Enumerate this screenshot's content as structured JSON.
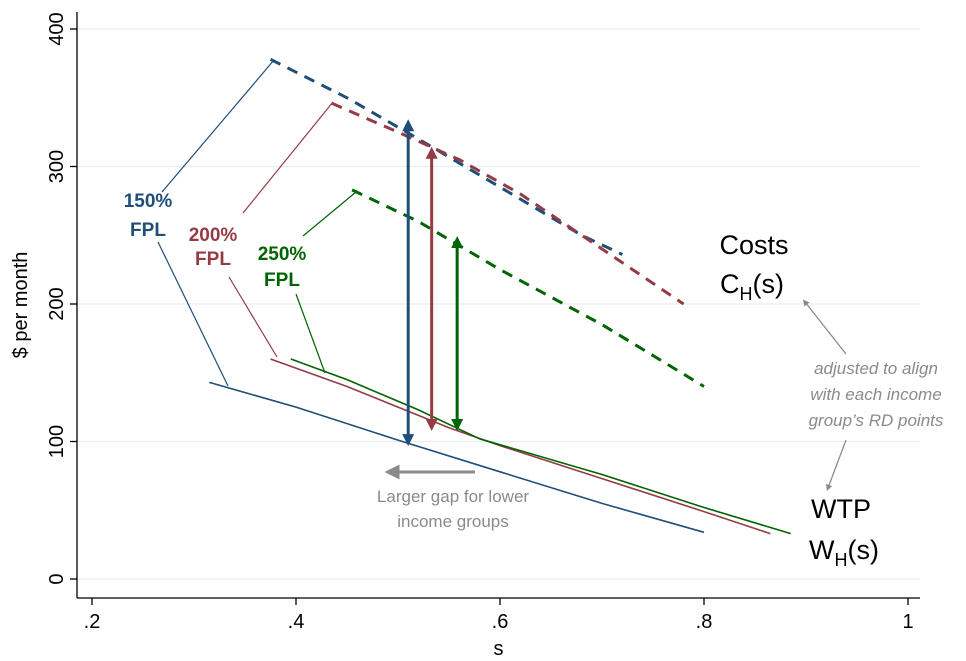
{
  "chart_data": {
    "type": "line",
    "xlabel": "s",
    "ylabel": "$ per month",
    "xlim": [
      0.2,
      1.0
    ],
    "ylim": [
      0,
      400
    ],
    "x_ticks": [
      ".2",
      ".4",
      ".6",
      ".8",
      "1"
    ],
    "y_ticks": [
      "0",
      "100",
      "200",
      "300",
      "400"
    ],
    "grid": "horizontal",
    "colors": {
      "fpl150": "#1f4e79",
      "fpl200": "#943b44",
      "fpl250": "#006400",
      "note": "#8a8a8a"
    },
    "series": [
      {
        "group": "150% FPL",
        "curve": "cost",
        "style": "dashed",
        "color": "#1f4e79",
        "x": [
          0.375,
          0.45,
          0.52,
          0.6,
          0.68,
          0.72
        ],
        "y": [
          378,
          350,
          320,
          285,
          250,
          236
        ]
      },
      {
        "group": "200% FPL",
        "curve": "cost",
        "style": "dashed",
        "color": "#943b44",
        "x": [
          0.435,
          0.5,
          0.56,
          0.62,
          0.7,
          0.78
        ],
        "y": [
          346,
          325,
          305,
          280,
          240,
          200
        ]
      },
      {
        "group": "250% FPL",
        "curve": "cost",
        "style": "dashed",
        "color": "#006400",
        "x": [
          0.455,
          0.52,
          0.6,
          0.7,
          0.8
        ],
        "y": [
          283,
          260,
          225,
          185,
          140
        ]
      },
      {
        "group": "150% FPL",
        "curve": "wtp",
        "style": "solid",
        "color": "#1f4e79",
        "x": [
          0.315,
          0.4,
          0.5,
          0.6,
          0.7,
          0.8
        ],
        "y": [
          143,
          125,
          101,
          78,
          55,
          34
        ]
      },
      {
        "group": "200% FPL",
        "curve": "wtp",
        "style": "solid",
        "color": "#943b44",
        "x": [
          0.375,
          0.45,
          0.55,
          0.6,
          0.7,
          0.8,
          0.865
        ],
        "y": [
          160,
          140,
          110,
          97,
          73,
          49,
          33
        ]
      },
      {
        "group": "250% FPL",
        "curve": "wtp",
        "style": "solid",
        "color": "#006400",
        "x": [
          0.395,
          0.45,
          0.52,
          0.58,
          0.7,
          0.8,
          0.885
        ],
        "y": [
          160,
          145,
          123,
          102,
          76,
          52,
          33
        ]
      }
    ],
    "gap_arrows": [
      {
        "group": "150% FPL",
        "x": 0.51,
        "y_from": 101,
        "y_to": 330,
        "color": "#1f4e79"
      },
      {
        "group": "200% FPL",
        "x": 0.533,
        "y_from": 112,
        "y_to": 310,
        "color": "#943b44"
      },
      {
        "group": "250% FPL",
        "x": 0.558,
        "y_from": 112,
        "y_to": 245,
        "color": "#006400"
      }
    ],
    "annotations": {
      "group_labels": [
        {
          "line1": "150%",
          "line2": "FPL",
          "color": "#1f4e79"
        },
        {
          "line1": "200%",
          "line2": "FPL",
          "color": "#943b44"
        },
        {
          "line1": "250%",
          "line2": "FPL",
          "color": "#006400"
        }
      ],
      "costs_label": "Costs",
      "costs_formula_main": "C",
      "costs_formula_sub": "H",
      "costs_formula_arg": "(s)",
      "wtp_label": "WTP",
      "wtp_formula_main": "W",
      "wtp_formula_sub": "H",
      "wtp_formula_arg": "(s)",
      "adjust_note": [
        "adjusted to align",
        "with each income",
        "group’s RD points"
      ],
      "gap_note": [
        "Larger gap for lower",
        "income groups"
      ]
    }
  }
}
